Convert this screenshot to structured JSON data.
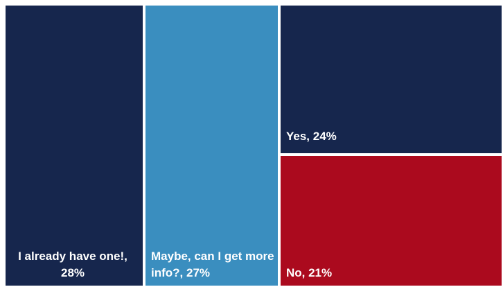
{
  "chart_data": {
    "type": "treemap",
    "title": "",
    "items": [
      {
        "label": "I already have one!, 28%",
        "category": "I already have one!",
        "value": 28,
        "color": "#16264d"
      },
      {
        "label": "Maybe, can I get more info?, 27%",
        "category": "Maybe, can I get more info?",
        "value": 27,
        "color": "#3a8ebf"
      },
      {
        "label": "Yes, 24%",
        "category": "Yes",
        "value": 24,
        "color": "#16264d"
      },
      {
        "label": "No, 21%",
        "category": "No",
        "value": 21,
        "color": "#ab0a1e"
      }
    ]
  }
}
